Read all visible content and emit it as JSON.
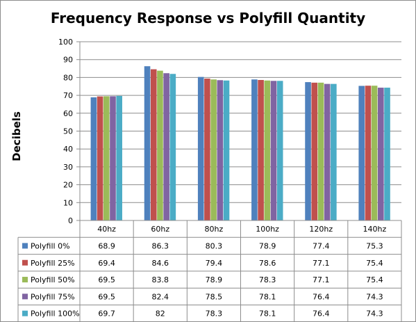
{
  "chart_data": {
    "type": "bar",
    "title": "Frequency Response vs Polyfill Quantity",
    "ylabel": "Decibels",
    "xlabel": "",
    "ylim": [
      0,
      100
    ],
    "yticks": [
      0,
      10,
      20,
      30,
      40,
      50,
      60,
      70,
      80,
      90,
      100
    ],
    "grid": true,
    "legend": "data-table",
    "categories": [
      "40hz",
      "60hz",
      "80hz",
      "100hz",
      "120hz",
      "140hz"
    ],
    "series": [
      {
        "name": "Polyfill 0%",
        "color": "#4f81bd",
        "values": [
          68.9,
          86.3,
          80.3,
          78.9,
          77.4,
          75.3
        ]
      },
      {
        "name": "Polyfill 25%",
        "color": "#c0504d",
        "values": [
          69.4,
          84.6,
          79.4,
          78.6,
          77.1,
          75.4
        ]
      },
      {
        "name": "Polyfill 50%",
        "color": "#9bbb59",
        "values": [
          69.5,
          83.8,
          78.9,
          78.3,
          77.1,
          75.4
        ]
      },
      {
        "name": "Polyfill 75%",
        "color": "#8064a2",
        "values": [
          69.5,
          82.4,
          78.5,
          78.1,
          76.4,
          74.3
        ]
      },
      {
        "name": "Polyfill 100%",
        "color": "#4bacc6",
        "values": [
          69.7,
          82,
          78.3,
          78.1,
          76.4,
          74.3
        ]
      }
    ]
  }
}
